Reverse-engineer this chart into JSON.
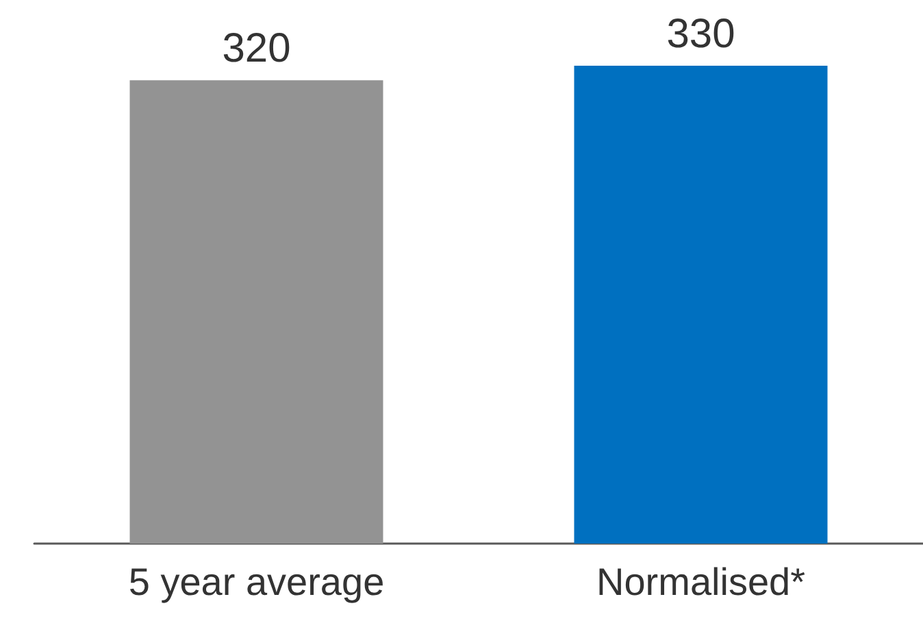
{
  "chart_data": {
    "type": "bar",
    "categories": [
      "5 year average",
      "Normalised*"
    ],
    "values": [
      320,
      330
    ],
    "colors": [
      "#939393",
      "#0070c0"
    ],
    "data_labels": true
  }
}
